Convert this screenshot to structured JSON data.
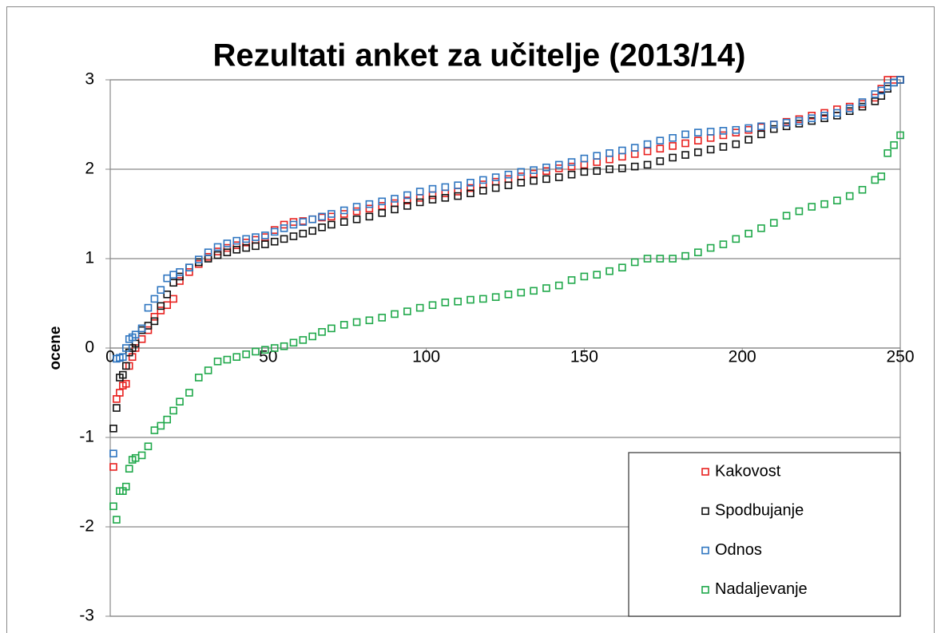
{
  "chart_data": {
    "type": "scatter",
    "title": "Rezultati anket za učitelje (2013/14)",
    "y_label": "ocene",
    "xlim": [
      0,
      250
    ],
    "xticks": [
      0,
      50,
      100,
      150,
      200,
      250
    ],
    "ylim": [
      -3,
      3
    ],
    "yticks": [
      -3,
      -2,
      -1,
      0,
      1,
      2,
      3
    ],
    "grid": true,
    "legend": "lower right",
    "x": [
      1,
      2,
      3,
      4,
      5,
      6,
      7,
      8,
      10,
      12,
      14,
      16,
      18,
      20,
      22,
      25,
      28,
      31,
      34,
      37,
      40,
      43,
      46,
      49,
      52,
      55,
      58,
      61,
      64,
      67,
      70,
      74,
      78,
      82,
      86,
      90,
      94,
      98,
      102,
      106,
      110,
      114,
      118,
      122,
      126,
      130,
      134,
      138,
      142,
      146,
      150,
      154,
      158,
      162,
      166,
      170,
      174,
      178,
      182,
      186,
      190,
      194,
      198,
      202,
      206,
      210,
      214,
      218,
      222,
      226,
      230,
      234,
      238,
      242,
      244,
      246,
      248,
      250
    ],
    "series": [
      {
        "name": "Kakovost",
        "color": "#e8201e",
        "values": [
          -1.33,
          -0.57,
          -0.5,
          -0.42,
          -0.4,
          -0.2,
          -0.1,
          0,
          0.1,
          0.2,
          0.35,
          0.42,
          0.48,
          0.55,
          0.75,
          0.85,
          0.94,
          1.02,
          1.08,
          1.12,
          1.15,
          1.18,
          1.21,
          1.24,
          1.32,
          1.38,
          1.41,
          1.42,
          1.44,
          1.46,
          1.47,
          1.5,
          1.53,
          1.56,
          1.59,
          1.62,
          1.65,
          1.68,
          1.71,
          1.73,
          1.75,
          1.79,
          1.83,
          1.86,
          1.89,
          1.92,
          1.95,
          1.98,
          2.01,
          2.03,
          2.05,
          2.08,
          2.11,
          2.14,
          2.17,
          2.2,
          2.23,
          2.26,
          2.29,
          2.32,
          2.35,
          2.38,
          2.41,
          2.44,
          2.47,
          2.5,
          2.53,
          2.56,
          2.6,
          2.63,
          2.67,
          2.7,
          2.73,
          2.8,
          2.9,
          3,
          3,
          3
        ]
      },
      {
        "name": "Spodbujanje",
        "color": "#111111",
        "values": [
          -0.9,
          -0.67,
          -0.33,
          -0.3,
          -0.2,
          -0.05,
          0,
          0.05,
          0.2,
          0.25,
          0.3,
          0.47,
          0.6,
          0.73,
          0.8,
          0.9,
          0.96,
          1.0,
          1.04,
          1.07,
          1.1,
          1.12,
          1.14,
          1.16,
          1.19,
          1.22,
          1.25,
          1.28,
          1.31,
          1.35,
          1.38,
          1.41,
          1.44,
          1.47,
          1.51,
          1.55,
          1.59,
          1.63,
          1.66,
          1.68,
          1.7,
          1.73,
          1.76,
          1.79,
          1.82,
          1.85,
          1.87,
          1.89,
          1.91,
          1.94,
          1.97,
          1.98,
          2.0,
          2.01,
          2.03,
          2.05,
          2.09,
          2.13,
          2.16,
          2.19,
          2.22,
          2.25,
          2.28,
          2.33,
          2.39,
          2.45,
          2.48,
          2.51,
          2.54,
          2.57,
          2.6,
          2.65,
          2.7,
          2.76,
          2.82,
          2.9,
          2.97,
          3
        ]
      },
      {
        "name": "Odnos",
        "color": "#2e75c0",
        "values": [
          -1.18,
          -0.12,
          -0.11,
          -0.1,
          0,
          0.1,
          0.12,
          0.15,
          0.22,
          0.45,
          0.55,
          0.65,
          0.78,
          0.82,
          0.85,
          0.9,
          0.99,
          1.07,
          1.13,
          1.17,
          1.2,
          1.22,
          1.24,
          1.26,
          1.3,
          1.34,
          1.38,
          1.41,
          1.44,
          1.47,
          1.5,
          1.54,
          1.58,
          1.61,
          1.64,
          1.67,
          1.71,
          1.75,
          1.78,
          1.8,
          1.82,
          1.85,
          1.88,
          1.91,
          1.94,
          1.97,
          1.99,
          2.02,
          2.05,
          2.08,
          2.12,
          2.15,
          2.18,
          2.21,
          2.24,
          2.28,
          2.32,
          2.35,
          2.39,
          2.41,
          2.42,
          2.43,
          2.44,
          2.46,
          2.48,
          2.5,
          2.52,
          2.54,
          2.57,
          2.6,
          2.63,
          2.68,
          2.75,
          2.84,
          2.88,
          2.93,
          2.97,
          3
        ]
      },
      {
        "name": "Nadaljevanje",
        "color": "#1fa84a",
        "values": [
          -1.77,
          -1.92,
          -1.6,
          -1.6,
          -1.55,
          -1.35,
          -1.25,
          -1.23,
          -1.2,
          -1.1,
          -0.92,
          -0.87,
          -0.8,
          -0.7,
          -0.6,
          -0.5,
          -0.33,
          -0.25,
          -0.15,
          -0.13,
          -0.1,
          -0.07,
          -0.04,
          -0.02,
          0,
          0.02,
          0.06,
          0.09,
          0.13,
          0.18,
          0.22,
          0.26,
          0.29,
          0.31,
          0.34,
          0.38,
          0.41,
          0.45,
          0.48,
          0.51,
          0.52,
          0.54,
          0.55,
          0.57,
          0.6,
          0.62,
          0.64,
          0.67,
          0.7,
          0.76,
          0.8,
          0.82,
          0.86,
          0.9,
          0.96,
          1.0,
          1.0,
          1.0,
          1.03,
          1.07,
          1.12,
          1.16,
          1.22,
          1.28,
          1.34,
          1.4,
          1.48,
          1.53,
          1.58,
          1.61,
          1.65,
          1.7,
          1.77,
          1.88,
          1.92,
          2.18,
          2.27,
          2.38
        ]
      }
    ]
  }
}
